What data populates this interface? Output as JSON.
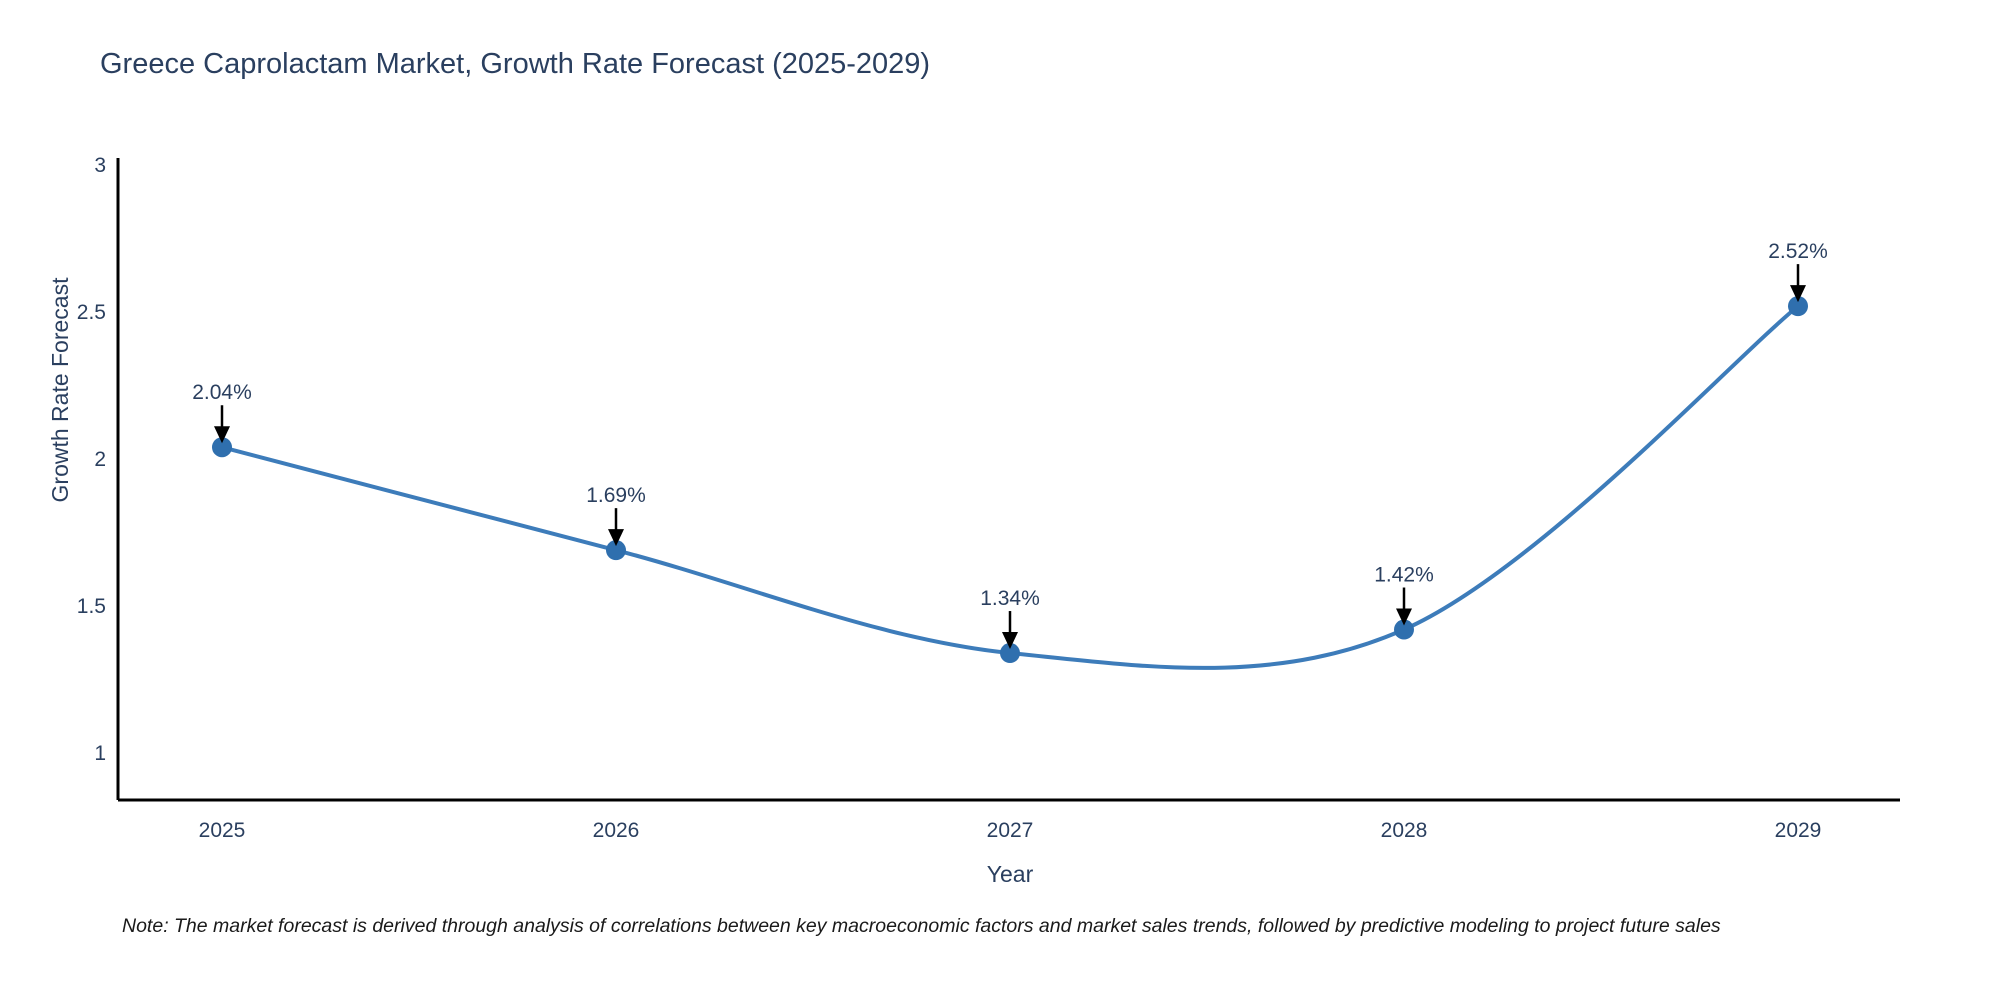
{
  "chart_data": {
    "type": "line",
    "title": "Greece Caprolactam Market, Growth Rate Forecast (2025-2029)",
    "xlabel": "Year",
    "ylabel": "Growth Rate Forecast",
    "categories": [
      "2025",
      "2026",
      "2027",
      "2028",
      "2029"
    ],
    "values": [
      2.04,
      1.69,
      1.34,
      1.42,
      2.52
    ],
    "point_labels": [
      "2.04%",
      "1.69%",
      "1.34%",
      "1.42%",
      "2.52%"
    ],
    "y_ticks": [
      1,
      1.5,
      2,
      2.5,
      3
    ],
    "ylim": [
      0.84,
      3.02
    ],
    "grid": false,
    "legend_position": "none",
    "line_smoothing": "spline",
    "colors": {
      "line": "#3d7cba",
      "marker": "#2f6fae",
      "axis": "#000000",
      "text": "#2a3f5f",
      "annotation_arrow": "#000000"
    }
  },
  "note": {
    "text": "Note: The market forecast is derived through analysis of correlations between key macroeconomic factors and market sales trends, followed by predictive modeling to project future sales"
  }
}
